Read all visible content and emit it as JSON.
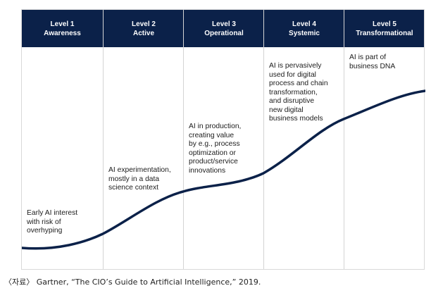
{
  "levels": [
    {
      "level": "Level 1",
      "name": "Awareness",
      "description": "Early AI interest\nwith risk of\noverhyping"
    },
    {
      "level": "Level 2",
      "name": "Active",
      "description": "AI experimentation,\nmostly in a data\nscience context"
    },
    {
      "level": "Level 3",
      "name": "Operational",
      "description": "AI in production,\ncreating value\nby e.g., process\noptimization or\nproduct/service\ninnovations"
    },
    {
      "level": "Level 4",
      "name": "Systemic",
      "description": "AI is pervasively\nused for digital\nprocess and chain\ntransformation,\nand disruptive\nnew digital\nbusiness models"
    },
    {
      "level": "Level 5",
      "name": "Transformational",
      "description": "AI is part of\nbusiness DNA"
    }
  ],
  "source": "〈자료〉 Gartner, “The CIO’s Guide to Artificial Intelligence,” 2019.",
  "colors": {
    "header": "#0b2149",
    "curve": "#0b2149",
    "border": "#d4d4d4"
  }
}
